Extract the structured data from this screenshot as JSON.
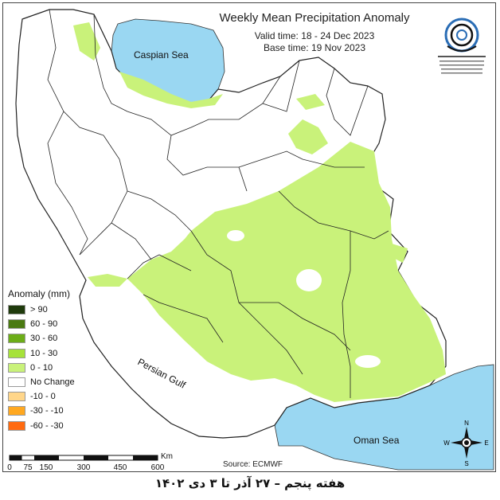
{
  "title": "Weekly Mean Precipitation Anomaly",
  "valid_time": "Valid time: 18 - 24 Dec 2023",
  "base_time": "Base time: 19 Nov 2023",
  "legend": {
    "title": "Anomaly (mm)",
    "items": [
      {
        "label": "> 90",
        "color": "#1f3a0c"
      },
      {
        "label": "60 - 90",
        "color": "#4a7a12"
      },
      {
        "label": "30 - 60",
        "color": "#6cad18"
      },
      {
        "label": "10 - 30",
        "color": "#a6e23a"
      },
      {
        "label": "0 - 10",
        "color": "#c9f27a"
      },
      {
        "label": "No Change",
        "color": "#ffffff"
      },
      {
        "label": "-10 - 0",
        "color": "#ffd68a"
      },
      {
        "label": "-30 - -10",
        "color": "#ffa820"
      },
      {
        "label": "-60 - -30",
        "color": "#ff6a10"
      }
    ]
  },
  "scale": {
    "unit": "Km",
    "ticks": [
      "0",
      "75",
      "150",
      "300",
      "450",
      "600"
    ]
  },
  "source": "Source: ECMWF",
  "seas": {
    "caspian": "Caspian Sea",
    "gulf": "Persian Gulf",
    "oman": "Oman Sea"
  },
  "compass": {
    "n": "N",
    "s": "S",
    "e": "E",
    "w": "W"
  },
  "footer": "هفته پنجم – ۲۷ آذر تا ۳ دی ۱۴۰۲",
  "colors": {
    "water": "#9ad7f2",
    "land": "#ffffff",
    "border": "#222222"
  }
}
